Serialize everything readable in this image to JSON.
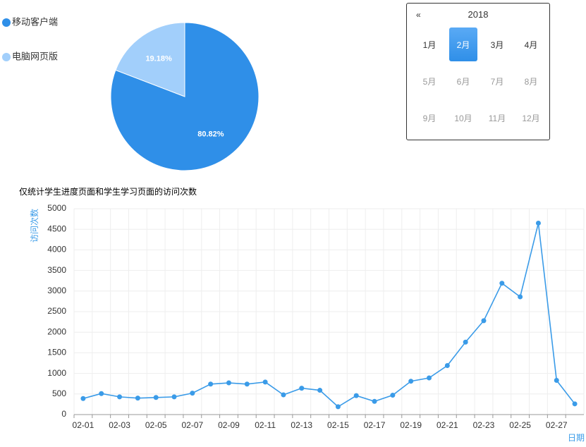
{
  "chart_data": [
    {
      "type": "pie",
      "categories": [
        "移动客户端",
        "电脑网页版"
      ],
      "values": [
        80.82,
        19.18
      ],
      "value_labels": [
        "80.82%",
        "19.18%"
      ],
      "colors": [
        "#2f8fe8",
        "#a2cffb"
      ]
    },
    {
      "type": "line",
      "title": "仅统计学生进度页面和学生学习页面的访问次数",
      "y_label": "访问次数",
      "x_label": "日期",
      "categories": [
        "02-01",
        null,
        "02-03",
        null,
        "02-05",
        null,
        "02-07",
        null,
        "02-09",
        null,
        "02-11",
        null,
        "02-13",
        null,
        "02-15",
        null,
        "02-17",
        null,
        "02-19",
        null,
        "02-21",
        null,
        "02-23",
        null,
        "02-25",
        null,
        "02-27",
        null
      ],
      "values": [
        390,
        510,
        430,
        400,
        415,
        430,
        520,
        740,
        770,
        740,
        790,
        480,
        640,
        590,
        190,
        460,
        320,
        470,
        810,
        890,
        1190,
        1760,
        2280,
        3190,
        2860,
        4650,
        830,
        260
      ],
      "color": "#3a9be8",
      "ylim": [
        0,
        5000
      ],
      "yticks": [
        0,
        500,
        1000,
        1500,
        2000,
        2500,
        3000,
        3500,
        4000,
        4500,
        5000
      ],
      "grid": true
    }
  ],
  "month_picker": {
    "prev": "«",
    "year": "2018",
    "months": [
      "1月",
      "2月",
      "3月",
      "4月",
      "5月",
      "6月",
      "7月",
      "8月",
      "9月",
      "10月",
      "11月",
      "12月"
    ],
    "selected": 1
  }
}
